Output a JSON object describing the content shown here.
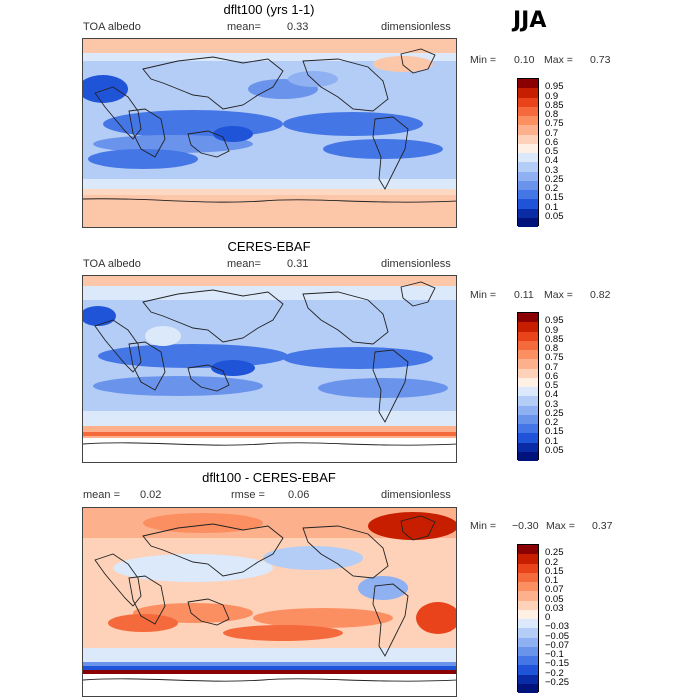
{
  "season": "JJA",
  "panels": [
    {
      "title": "dflt100 (yrs 1-1)",
      "left_label": "TOA albedo",
      "mid_label": "mean=",
      "mid_value": "0.33",
      "right_label": "dimensionless",
      "min_label": "Min =",
      "min_value": "0.10",
      "max_label": "Max =",
      "max_value": "0.73",
      "colorbar": {
        "levels": [
          "0.95",
          "0.9",
          "0.85",
          "0.8",
          "0.75",
          "0.7",
          "0.6",
          "0.5",
          "0.4",
          "0.3",
          "0.25",
          "0.2",
          "0.15",
          "0.1",
          "0.05"
        ],
        "colors": [
          "#8b0000",
          "#c81e00",
          "#e8431a",
          "#f56a3c",
          "#fb8f62",
          "#fcb08c",
          "#fdd2b8",
          "#fff0e6",
          "#dbe9fb",
          "#b4cdf6",
          "#8fb1f1",
          "#6a94ec",
          "#4576e6",
          "#1f54d9",
          "#0a2ba6",
          "#00137a"
        ]
      }
    },
    {
      "title": "CERES-EBAF",
      "left_label": "TOA albedo",
      "mid_label": "mean=",
      "mid_value": "0.31",
      "right_label": "dimensionless",
      "min_label": "Min =",
      "min_value": "0.11",
      "max_label": "Max =",
      "max_value": "0.82",
      "colorbar": {
        "levels": [
          "0.95",
          "0.9",
          "0.85",
          "0.8",
          "0.75",
          "0.7",
          "0.6",
          "0.5",
          "0.4",
          "0.3",
          "0.25",
          "0.2",
          "0.15",
          "0.1",
          "0.05"
        ],
        "colors": [
          "#8b0000",
          "#c81e00",
          "#e8431a",
          "#f56a3c",
          "#fb8f62",
          "#fcb08c",
          "#fdd2b8",
          "#fff0e6",
          "#dbe9fb",
          "#b4cdf6",
          "#8fb1f1",
          "#6a94ec",
          "#4576e6",
          "#1f54d9",
          "#0a2ba6",
          "#00137a"
        ]
      }
    },
    {
      "title": "dflt100 - CERES-EBAF",
      "left_label": "mean =",
      "left_value": "0.02",
      "mid_label": "rmse =",
      "mid_value": "0.06",
      "right_label": "dimensionless",
      "min_label": "Min =",
      "min_value": "−0.30",
      "max_label": "Max =",
      "max_value": "0.37",
      "colorbar": {
        "levels": [
          "0.25",
          "0.2",
          "0.15",
          "0.1",
          "0.07",
          "0.05",
          "0.03",
          "0",
          "−0.03",
          "−0.05",
          "−0.07",
          "−0.1",
          "−0.15",
          "−0.2",
          "−0.25"
        ],
        "colors": [
          "#8b0000",
          "#c81e00",
          "#e8431a",
          "#f56a3c",
          "#fb8f62",
          "#fcb08c",
          "#fdd2b8",
          "#fff0e6",
          "#dbe9fb",
          "#b4cdf6",
          "#8fb1f1",
          "#6a94ec",
          "#4576e6",
          "#1f54d9",
          "#0a2ba6",
          "#00137a"
        ]
      }
    }
  ]
}
